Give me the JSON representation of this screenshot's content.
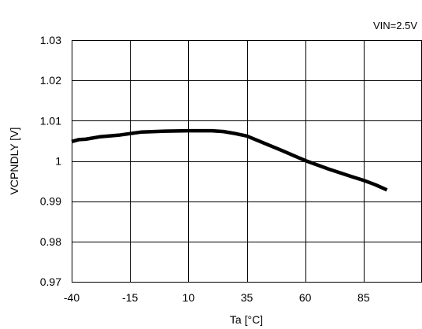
{
  "chart_data": {
    "type": "line",
    "annotation": "VIN=2.5V",
    "xlabel": "Ta [°C]",
    "ylabel": "VCPNDLY [V]",
    "xlim": [
      -40,
      110
    ],
    "ylim": [
      0.97,
      1.03
    ],
    "x_ticks": [
      -40,
      -15,
      10,
      35,
      60,
      85
    ],
    "x_tick_labels": [
      "-40",
      "-15",
      "10",
      "35",
      "60",
      "85"
    ],
    "y_ticks": [
      1.03,
      1.02,
      1.01,
      1,
      0.99,
      0.98,
      0.97
    ],
    "y_tick_labels": [
      "1.03",
      "1.02",
      "1.01",
      "1",
      "0.99",
      "0.98",
      "0.97"
    ],
    "grid": true,
    "series": [
      {
        "color": "#000000",
        "x": [
          -40,
          -37,
          -34,
          -28,
          -20,
          -10,
          0,
          10,
          20,
          25,
          30,
          35,
          40,
          50,
          60,
          70,
          80,
          85,
          90,
          95
        ],
        "y": [
          1.0048,
          1.0053,
          1.0054,
          1.006,
          1.0064,
          1.0072,
          1.0074,
          1.0075,
          1.0075,
          1.0073,
          1.0068,
          1.0062,
          1.005,
          1.0026,
          1.0001,
          0.998,
          0.9961,
          0.9952,
          0.9941,
          0.9928
        ]
      }
    ]
  }
}
